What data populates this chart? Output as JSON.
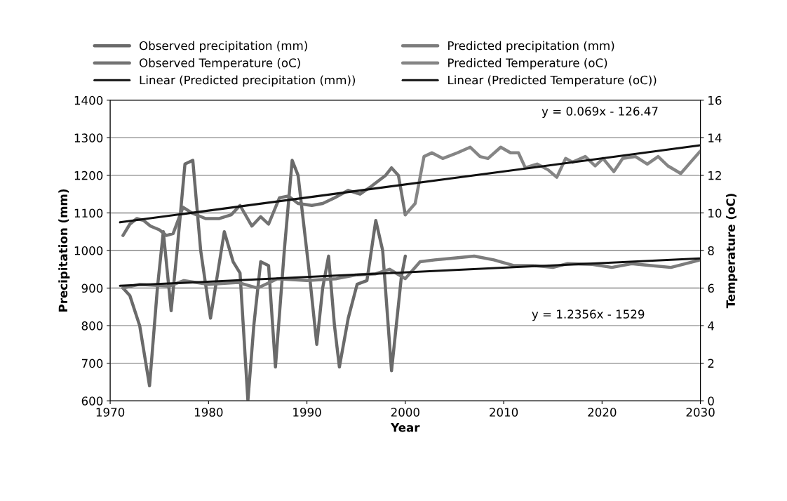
{
  "chart_data": {
    "type": "line",
    "xlabel": "Year",
    "ylabel": "Precipitation (mm)",
    "y2label": "Temperature (oC)",
    "xlim": [
      1970,
      2030
    ],
    "xticks": [
      1970,
      1980,
      1990,
      2000,
      2010,
      2020,
      2030
    ],
    "ylim": [
      600,
      1400
    ],
    "yticks": [
      600,
      700,
      800,
      900,
      1000,
      1100,
      1200,
      1300,
      1400
    ],
    "y2lim": [
      0,
      16
    ],
    "y2ticks": [
      0,
      2,
      4,
      6,
      8,
      10,
      12,
      14,
      16
    ],
    "grid": "y",
    "legend": "top",
    "marker": "none",
    "line_style": "solid",
    "series": [
      {
        "name": "Observed precipitation (mm)",
        "color": "#6a6a6a",
        "x": [
          1971.3,
          1972,
          1973,
          1974,
          1974.8,
          1975.4,
          1976.2,
          1976.8,
          1977.6,
          1978.4,
          1979.2,
          1980.2,
          1981.6,
          1982.5,
          1983.2,
          1984,
          1984.6,
          1985.3,
          1986.1,
          1986.8,
          1987.7,
          1988.5,
          1989.1,
          1990.2,
          1991,
          1991.6,
          1992.2,
          1992.8,
          1993.3,
          1994.2,
          1995.1,
          1996.1,
          1997,
          1997.7,
          1998.6,
          1999.6,
          2000
        ],
        "values": [
          900,
          880,
          800,
          640,
          900,
          1050,
          840,
          1000,
          1230,
          1240,
          1000,
          820,
          1050,
          970,
          940,
          600,
          800,
          970,
          960,
          690,
          1000,
          1240,
          1200,
          950,
          750,
          900,
          985,
          800,
          690,
          820,
          910,
          920,
          1080,
          1000,
          680,
          930,
          985
        ]
      },
      {
        "name": "Predicted precipitation (mm)",
        "color": "#7c7c7c",
        "x": [
          1971.3,
          1973,
          1976,
          1977.5,
          1980,
          1983,
          1985,
          1987,
          1990,
          1993,
          1995,
          1997,
          1998.4,
          2000,
          2001.5,
          2003,
          2005,
          2007,
          2009,
          2011,
          2013,
          2015,
          2016.5,
          2019,
          2021,
          2023,
          2025,
          2027,
          2030
        ],
        "values": [
          900,
          910,
          905,
          920,
          910,
          915,
          900,
          925,
          920,
          925,
          935,
          938,
          950,
          925,
          970,
          975,
          980,
          985,
          975,
          960,
          960,
          955,
          965,
          963,
          955,
          965,
          960,
          955,
          975
        ]
      },
      {
        "name": "Observed Temperature (oC)",
        "color": "#737373",
        "axis": "y2",
        "x": [
          1971.3,
          1972,
          1972.7,
          1973.4,
          1974.1,
          1975,
          1975.7,
          1976.4,
          1977.4,
          1978.3,
          1979.7,
          1981.1,
          1982.3,
          1983.2,
          1984.4,
          1985.3,
          1986.1,
          1987.2,
          1988.1,
          1989.1,
          1990.5,
          1991.6,
          1992.8,
          1994.2,
          1995.4,
          1996.5,
          1998,
          1998.6,
          1999.3,
          2000
        ],
        "values": [
          8.8,
          9.4,
          9.7,
          9.6,
          9.3,
          9.1,
          8.8,
          8.9,
          10.3,
          10.0,
          9.7,
          9.7,
          9.9,
          10.4,
          9.3,
          9.8,
          9.4,
          10.8,
          10.9,
          10.5,
          10.4,
          10.5,
          10.8,
          11.2,
          11.0,
          11.4,
          12.0,
          12.4,
          12.0,
          9.9
        ]
      },
      {
        "name": "Predicted Temperature (oC)",
        "color": "#858585",
        "axis": "y2",
        "x": [
          2000,
          2001,
          2001.9,
          2002.7,
          2003.8,
          2005.3,
          2006.6,
          2007.6,
          2008.4,
          2009.7,
          2010.7,
          2011.5,
          2012.2,
          2013.4,
          2014.5,
          2015.4,
          2016.3,
          2017,
          2018.3,
          2019.3,
          2020.1,
          2021.2,
          2022.1,
          2023.4,
          2024.6,
          2025.7,
          2026.7,
          2028,
          2029,
          2030
        ],
        "values": [
          9.9,
          10.5,
          13.0,
          13.2,
          12.9,
          13.2,
          13.5,
          13.0,
          12.9,
          13.5,
          13.2,
          13.2,
          12.4,
          12.6,
          12.3,
          11.9,
          12.9,
          12.7,
          13.0,
          12.5,
          12.9,
          12.2,
          12.9,
          13.0,
          12.6,
          13.0,
          12.5,
          12.1,
          12.7,
          13.3
        ]
      },
      {
        "name": "Linear (Predicted precipitation (mm))",
        "color": "#111111",
        "x": [
          1971,
          2030
        ],
        "values": [
          906,
          979
        ]
      },
      {
        "name": "Linear (Predicted Temperature (oC))",
        "color": "#111111",
        "axis": "y2",
        "x": [
          1971,
          2030
        ],
        "values": [
          9.5,
          13.6
        ]
      }
    ],
    "annotations": [
      "y = 0.069x - 126.47",
      "y = 1.2356x - 1529"
    ]
  }
}
